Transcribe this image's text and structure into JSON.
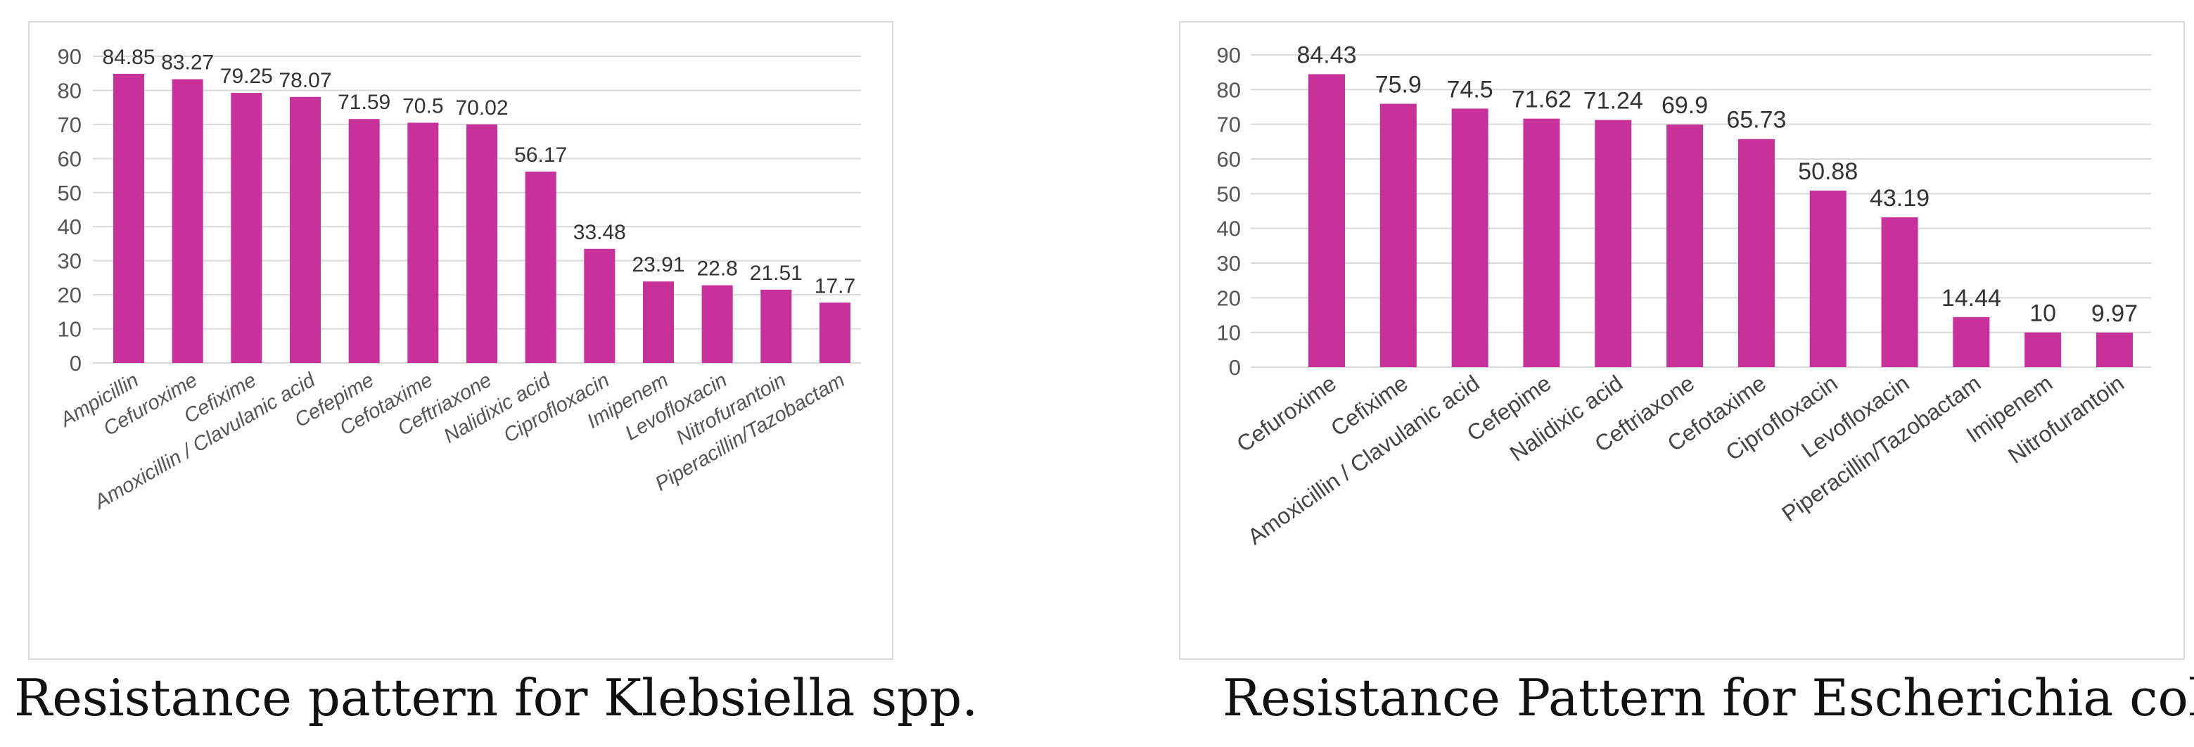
{
  "chart_data": [
    {
      "type": "bar",
      "title": "Resistance pattern for Klebsiella spp.",
      "xlabel": "",
      "ylabel": "",
      "ylim": [
        0,
        90
      ],
      "yticks": [
        0,
        10,
        20,
        30,
        40,
        50,
        60,
        70,
        80,
        90
      ],
      "grid": true,
      "legend": "none",
      "bar_color": "#c8309a",
      "categories": [
        "Ampicillin",
        "Cefuroxime",
        "Cefixime",
        "Amoxicillin / Clavulanic acid",
        "Cefepime",
        "Cefotaxime",
        "Ceftriaxone",
        "Nalidixic acid",
        "Ciprofloxacin",
        "Imipenem",
        "Levofloxacin",
        "Nitrofurantoin",
        "Piperacillin/Tazobactam"
      ],
      "values": [
        84.85,
        83.27,
        79.25,
        78.07,
        71.59,
        70.5,
        70.02,
        56.17,
        33.48,
        23.91,
        22.8,
        21.51,
        17.7
      ],
      "value_labels": [
        "84.85",
        "83.27",
        "79.25",
        "78.07",
        "71.59",
        "70.5",
        "70.02",
        "56.17",
        "33.48",
        "23.91",
        "22.8",
        "21.51",
        "17.7"
      ]
    },
    {
      "type": "bar",
      "title": "Resistance Pattern for Escherichia coli",
      "xlabel": "",
      "ylabel": "",
      "ylim": [
        0,
        90
      ],
      "yticks": [
        0,
        10,
        20,
        30,
        40,
        50,
        60,
        70,
        80,
        90
      ],
      "grid": true,
      "legend": "none",
      "bar_color": "#c8309a",
      "categories": [
        "Cefuroxime",
        "Cefixime",
        "Amoxicillin / Clavulanic acid",
        "Cefepime",
        "Nalidixic acid",
        "Ceftriaxone",
        "Cefotaxime",
        "Ciprofloxacin",
        "Levofloxacin",
        "Piperacillin/Tazobactam",
        "Imipenem",
        "Nitrofurantoin"
      ],
      "values": [
        84.43,
        75.9,
        74.5,
        71.62,
        71.24,
        69.9,
        65.73,
        50.88,
        43.19,
        14.44,
        10,
        9.97
      ],
      "value_labels": [
        "84.43",
        "75.9",
        "74.5",
        "71.62",
        "71.24",
        "69.9",
        "65.73",
        "50.88",
        "43.19",
        "14.44",
        "10",
        "9.97"
      ]
    }
  ]
}
